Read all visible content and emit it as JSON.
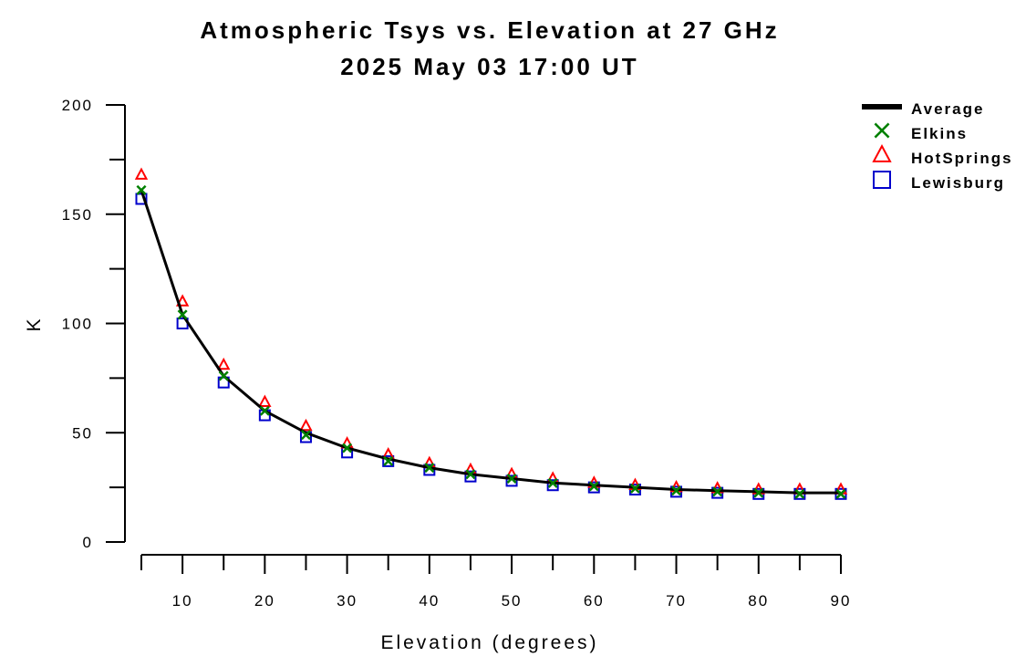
{
  "chart_data": {
    "type": "line",
    "title": "Atmospheric Tsys vs. Elevation at 27 GHz",
    "subtitle": "2025 May 03 17:00 UT",
    "xlabel": "Elevation (degrees)",
    "ylabel": "K",
    "xlim": [
      5,
      90
    ],
    "ylim": [
      0,
      200
    ],
    "xticks": [
      10,
      20,
      30,
      40,
      50,
      60,
      70,
      80,
      90
    ],
    "yticks": [
      0,
      50,
      100,
      150,
      200
    ],
    "legend_position": "top-right",
    "grid": false,
    "x": [
      5,
      10,
      15,
      20,
      25,
      30,
      35,
      40,
      45,
      50,
      55,
      60,
      65,
      70,
      75,
      80,
      85,
      90
    ],
    "series": [
      {
        "name": "Average",
        "marker": "line",
        "color": "#000000",
        "values": [
          161,
          104,
          76,
          60,
          50,
          43,
          38,
          34,
          31,
          29,
          27,
          26,
          25,
          24,
          23.5,
          23,
          22.5,
          22.5
        ]
      },
      {
        "name": "Elkins",
        "marker": "x",
        "color": "#008000",
        "values": [
          161,
          104,
          76,
          60,
          49,
          43,
          37,
          34,
          31,
          29,
          27,
          25.5,
          24.5,
          23.5,
          23,
          22.5,
          22,
          22
        ]
      },
      {
        "name": "HotSprings",
        "marker": "triangle",
        "color": "#ff0000",
        "values": [
          168,
          110,
          81,
          64,
          53,
          45,
          40,
          36,
          33,
          31,
          29,
          27,
          26,
          25,
          24.5,
          24,
          24,
          24
        ]
      },
      {
        "name": "Lewisburg",
        "marker": "square",
        "color": "#0000cc",
        "values": [
          157,
          100,
          73,
          58,
          48,
          41,
          37,
          33,
          30,
          28,
          26,
          25,
          24,
          23,
          22.5,
          22,
          22,
          22
        ]
      }
    ]
  }
}
